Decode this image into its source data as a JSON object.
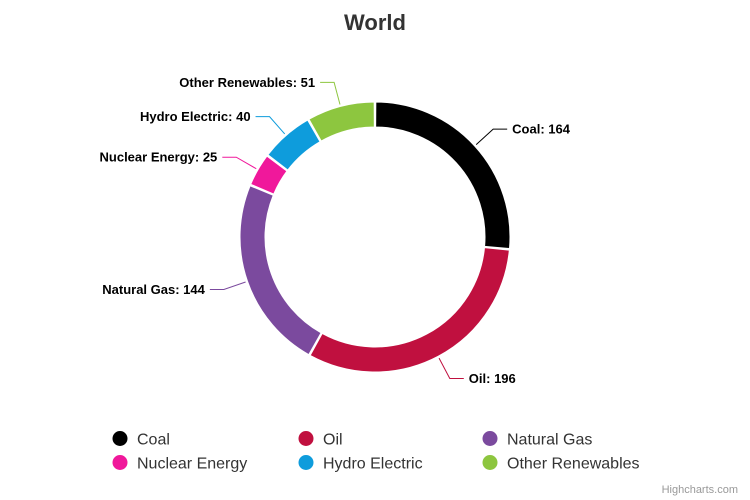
{
  "chart_data": {
    "type": "pie",
    "title": "World",
    "series": [
      {
        "data": [
          {
            "name": "Coal",
            "value": 164,
            "color": "#000000"
          },
          {
            "name": "Oil",
            "value": 196,
            "color": "#C0103F"
          },
          {
            "name": "Natural Gas",
            "value": 144,
            "color": "#7B4A9E"
          },
          {
            "name": "Nuclear Energy",
            "value": 25,
            "color": "#F0189B"
          },
          {
            "name": "Hydro Electric",
            "value": 40,
            "color": "#0E9CDC"
          },
          {
            "name": "Other Renewables",
            "value": 51,
            "color": "#8DC63F"
          }
        ]
      }
    ],
    "legend_position": "bottom",
    "credits": "Highcharts.com"
  }
}
